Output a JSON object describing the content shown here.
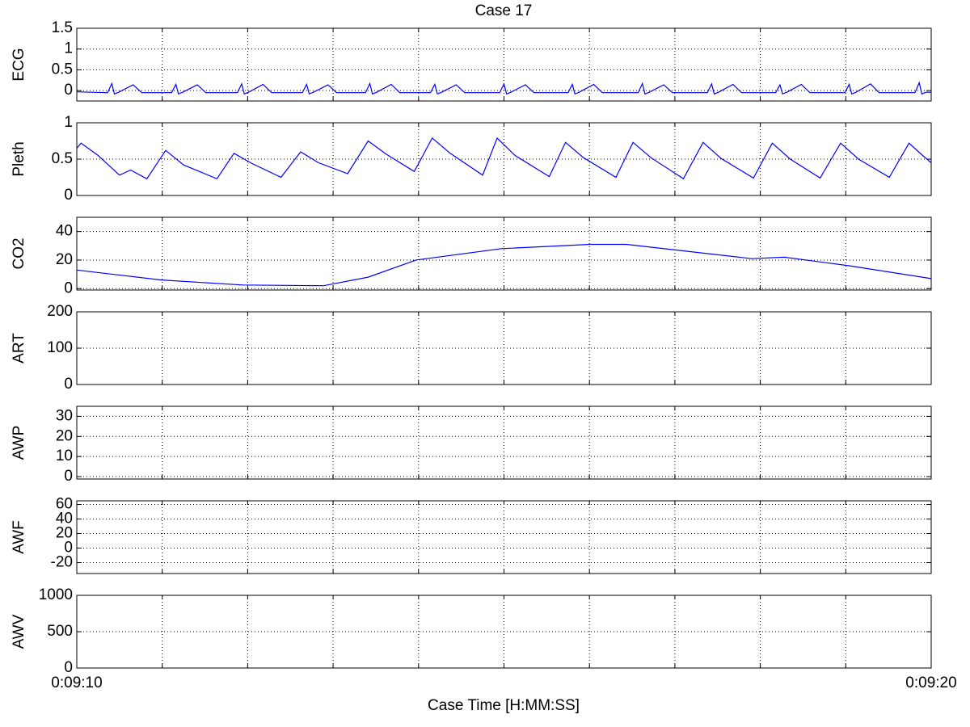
{
  "title": "Case 17",
  "xlabel": "Case Time [H:MM:SS]",
  "xlim": [
    550,
    560
  ],
  "xticks": [
    {
      "value": 550,
      "label": "0:09:10"
    },
    551,
    552,
    553,
    554,
    555,
    556,
    557,
    558,
    559,
    {
      "value": 560,
      "label": "0:09:20"
    }
  ],
  "chart_data": [
    {
      "type": "line",
      "ylabel": "ECG",
      "ylim": [
        -0.25,
        1.5
      ],
      "yticks": [
        0,
        0.5,
        1,
        1.5
      ],
      "grid": true,
      "color": "#0000ff",
      "x": [
        550.0,
        550.36,
        550.41,
        550.44,
        550.49,
        550.66,
        550.76,
        551.11,
        551.16,
        551.19,
        551.24,
        551.41,
        551.51,
        551.88,
        551.93,
        551.96,
        552.01,
        552.18,
        552.28,
        552.64,
        552.69,
        552.72,
        552.77,
        552.94,
        553.04,
        553.38,
        553.43,
        553.46,
        553.51,
        553.68,
        553.78,
        554.14,
        554.19,
        554.22,
        554.27,
        554.44,
        554.54,
        554.95,
        555.0,
        555.03,
        555.08,
        555.25,
        555.35,
        555.75,
        555.8,
        555.83,
        555.88,
        556.05,
        556.15,
        556.57,
        556.62,
        556.65,
        556.7,
        556.87,
        556.97,
        557.38,
        557.43,
        557.46,
        557.51,
        557.68,
        557.78,
        558.18,
        558.23,
        558.26,
        558.31,
        558.48,
        558.58,
        558.99,
        559.04,
        559.07,
        559.12,
        559.29,
        559.39,
        559.81,
        559.86,
        559.89,
        559.94,
        560.0
      ],
      "values": [
        -0.03,
        -0.05,
        0.17,
        -0.08,
        -0.04,
        0.14,
        -0.05,
        -0.05,
        0.15,
        -0.08,
        -0.04,
        0.14,
        -0.05,
        -0.05,
        0.16,
        -0.08,
        -0.04,
        0.15,
        -0.05,
        -0.05,
        0.15,
        -0.08,
        -0.04,
        0.14,
        -0.05,
        -0.05,
        0.17,
        -0.08,
        -0.04,
        0.15,
        -0.05,
        -0.05,
        0.15,
        -0.08,
        -0.04,
        0.14,
        -0.05,
        -0.05,
        0.16,
        -0.08,
        -0.04,
        0.14,
        -0.05,
        -0.05,
        0.15,
        -0.08,
        -0.04,
        0.15,
        -0.05,
        -0.05,
        0.17,
        -0.08,
        -0.04,
        0.14,
        -0.05,
        -0.05,
        0.16,
        -0.08,
        -0.04,
        0.15,
        -0.05,
        -0.05,
        0.14,
        -0.08,
        -0.04,
        0.15,
        -0.05,
        -0.05,
        0.15,
        -0.08,
        -0.04,
        0.16,
        -0.05,
        -0.05,
        0.19,
        -0.08,
        -0.04,
        -0.04
      ]
    },
    {
      "type": "line",
      "ylabel": "Pleth",
      "ylim": [
        0,
        1
      ],
      "yticks": [
        0,
        0.5,
        1
      ],
      "grid": true,
      "color": "#0000ff",
      "x": [
        550.0,
        550.05,
        550.25,
        550.5,
        550.63,
        550.82,
        551.04,
        551.25,
        551.64,
        551.84,
        552.05,
        552.39,
        552.62,
        552.83,
        553.17,
        553.41,
        553.62,
        553.95,
        554.16,
        554.37,
        554.75,
        554.92,
        555.13,
        555.53,
        555.72,
        555.93,
        556.31,
        556.51,
        556.72,
        557.1,
        557.33,
        557.54,
        557.92,
        558.14,
        558.35,
        558.7,
        558.94,
        559.15,
        559.51,
        559.74,
        559.9,
        560.0
      ],
      "values": [
        0.65,
        0.72,
        0.55,
        0.28,
        0.35,
        0.23,
        0.62,
        0.42,
        0.23,
        0.58,
        0.44,
        0.25,
        0.6,
        0.45,
        0.3,
        0.75,
        0.57,
        0.33,
        0.79,
        0.58,
        0.28,
        0.79,
        0.55,
        0.26,
        0.73,
        0.52,
        0.25,
        0.73,
        0.52,
        0.23,
        0.73,
        0.51,
        0.24,
        0.72,
        0.5,
        0.24,
        0.72,
        0.5,
        0.25,
        0.72,
        0.55,
        0.45
      ]
    },
    {
      "type": "line",
      "ylabel": "CO2",
      "ylim": [
        -1,
        50
      ],
      "yticks": [
        0,
        20,
        40
      ],
      "grid": true,
      "color": "#0000ff",
      "x": [
        550.0,
        550.99,
        551.94,
        552.89,
        553.41,
        553.97,
        554.97,
        556.01,
        556.43,
        557.9,
        558.28,
        559.04,
        560.0
      ],
      "values": [
        13,
        6,
        2.5,
        2,
        8,
        20,
        28,
        31,
        31,
        21,
        22,
        16,
        7
      ]
    },
    {
      "type": "line",
      "ylabel": "ART",
      "ylim": [
        0,
        200
      ],
      "yticks": [
        0,
        100,
        200
      ],
      "grid": true
    },
    {
      "type": "line",
      "ylabel": "AWP",
      "ylim": [
        -1.2,
        35
      ],
      "yticks": [
        0,
        10,
        20,
        30
      ],
      "grid": true
    },
    {
      "type": "line",
      "ylabel": "AWF",
      "ylim": [
        -35,
        65
      ],
      "yticks": [
        -20,
        0,
        20,
        40,
        60
      ],
      "grid": true
    },
    {
      "type": "line",
      "ylabel": "AWV",
      "ylim": [
        0,
        1000
      ],
      "yticks": [
        0,
        500,
        1000
      ],
      "grid": true
    }
  ]
}
